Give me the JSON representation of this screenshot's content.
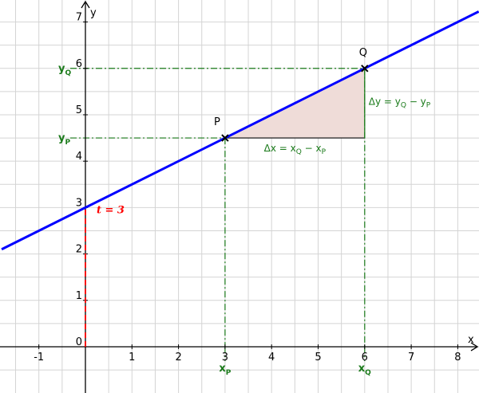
{
  "chart_data": {
    "type": "line",
    "x_label": "x",
    "y_label": "y",
    "xlim": [
      -1.835,
      8.456
    ],
    "ylim": [
      -0.997,
      7.474
    ],
    "xticks": [
      -1,
      1,
      2,
      3,
      4,
      5,
      6,
      7,
      8
    ],
    "yticks": [
      0,
      1,
      2,
      3,
      4,
      5,
      6,
      7
    ],
    "grid": true,
    "grid_step": 0.5,
    "line": {
      "color": "#0000ff",
      "x": [
        -1.8,
        8.45
      ],
      "values": [
        2.1,
        7.225
      ]
    },
    "points": [
      {
        "label": "P",
        "x": 3,
        "y": 4.5
      },
      {
        "label": "Q",
        "x": 6,
        "y": 6
      }
    ],
    "guide_color": "#1a7a1a",
    "triangle_fill": "#efdcd8",
    "x_markers": [
      {
        "value": 3,
        "label": [
          "x",
          "P"
        ]
      },
      {
        "value": 6,
        "label": [
          "x",
          "Q"
        ]
      }
    ],
    "y_markers": [
      {
        "value": 4.5,
        "label": [
          "y",
          "P"
        ]
      },
      {
        "value": 6,
        "label": [
          "y",
          "Q"
        ]
      }
    ],
    "delta_x": [
      "Δx = x",
      "Q",
      " − x",
      "P"
    ],
    "delta_y": [
      "Δy = y",
      "Q",
      " − y",
      "P"
    ],
    "intercept": {
      "value": 3,
      "label": "t = 3",
      "color": "#ff0000"
    }
  }
}
